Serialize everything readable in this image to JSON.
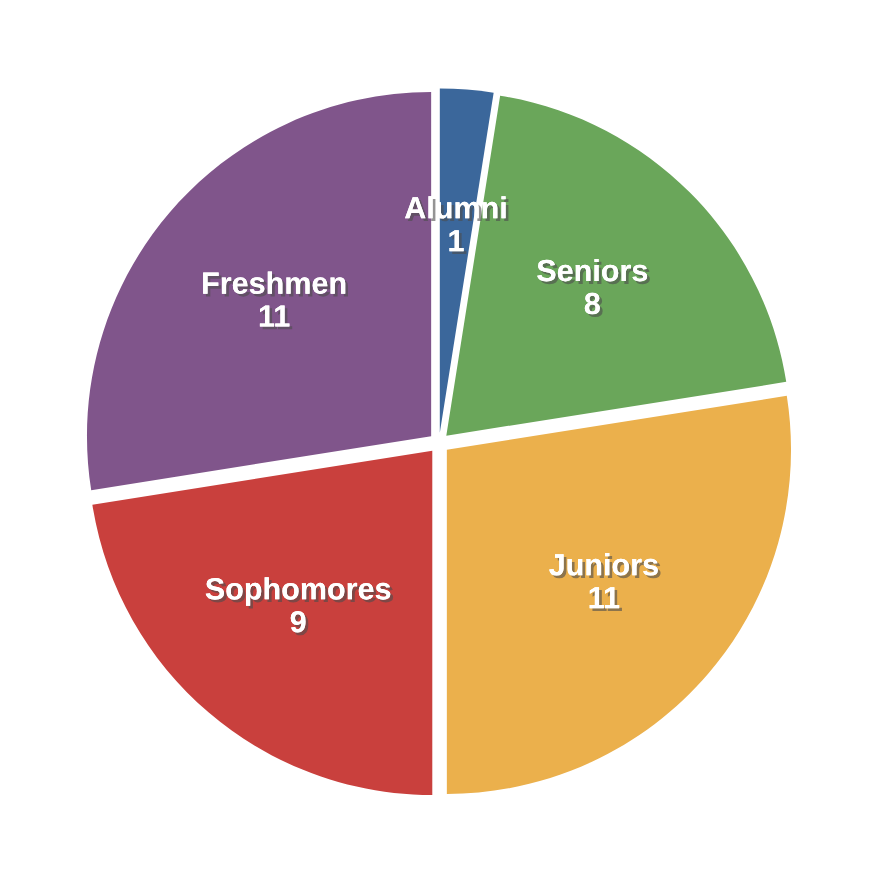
{
  "chart_data": {
    "type": "pie",
    "categories": [
      "Alumni",
      "Seniors",
      "Juniors",
      "Sophomores",
      "Freshmen"
    ],
    "values": [
      1,
      8,
      11,
      9,
      11
    ],
    "colors": [
      "#3b679b",
      "#6aa65a",
      "#ebb04c",
      "#c9403d",
      "#80558b"
    ],
    "data_labels": true
  }
}
